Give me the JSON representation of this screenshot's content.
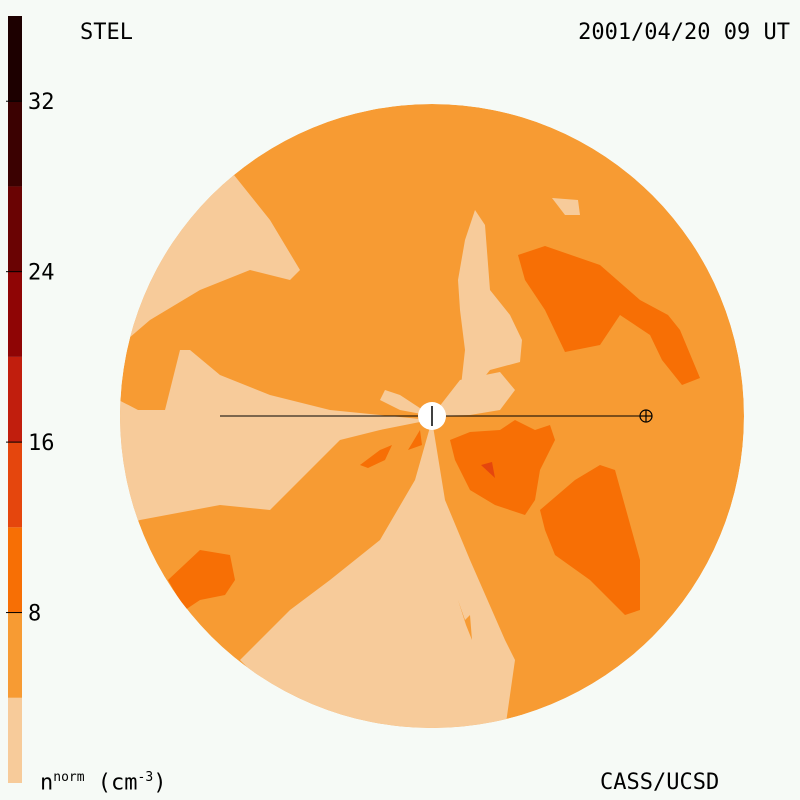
{
  "header": {
    "left": "STEL",
    "right": "2001/04/20 09 UT"
  },
  "footer": {
    "left_main": "n",
    "left_sup": "norm",
    "left_unit_open": " (cm",
    "left_unit_sup": "-3",
    "left_unit_close": ")",
    "right": "CASS/UCSD"
  },
  "colors": {
    "background": "#f6faf6",
    "ring_edge": "#f6faf6",
    "sun": "#ffffff",
    "earth_line": "#000000"
  },
  "chart_data": {
    "type": "heatmap",
    "quantity": "n",
    "colorbar": {
      "orientation": "vertical",
      "placement": "left",
      "range": [
        0,
        36
      ],
      "ticks": [
        8,
        16,
        24,
        32
      ],
      "bins": [
        {
          "from": 0,
          "to": 4,
          "color": "#f7cb9a"
        },
        {
          "from": 4,
          "to": 8,
          "color": "#f79b33"
        },
        {
          "from": 8,
          "to": 12,
          "color": "#f76f05"
        },
        {
          "from": 12,
          "to": 16,
          "color": "#e5460d"
        },
        {
          "from": 16,
          "to": 20,
          "color": "#c11e0d"
        },
        {
          "from": 20,
          "to": 24,
          "color": "#8f0505"
        },
        {
          "from": 24,
          "to": 28,
          "color": "#6a0303"
        },
        {
          "from": 28,
          "to": 32,
          "color": "#3b0101"
        },
        {
          "from": 32,
          "to": 36,
          "color": "#1d0000"
        }
      ]
    },
    "map": {
      "dominant_level": "4-8",
      "regions": [
        {
          "level": "0-4",
          "sector": "west"
        },
        {
          "level": "0-4",
          "sector": "south"
        },
        {
          "level": "0-4",
          "sector": "north-west"
        },
        {
          "level": "0-4",
          "sector": "north-centre"
        },
        {
          "level": "8-12",
          "sector": "north-east"
        },
        {
          "level": "8-12",
          "sector": "east"
        },
        {
          "level": "8-12",
          "sector": "south-east"
        },
        {
          "level": "8-12",
          "sector": "south-west"
        },
        {
          "level": "12-16",
          "sector": "east-near-sun"
        }
      ],
      "earth_marker": "⊕",
      "sun_marker": "+"
    }
  }
}
